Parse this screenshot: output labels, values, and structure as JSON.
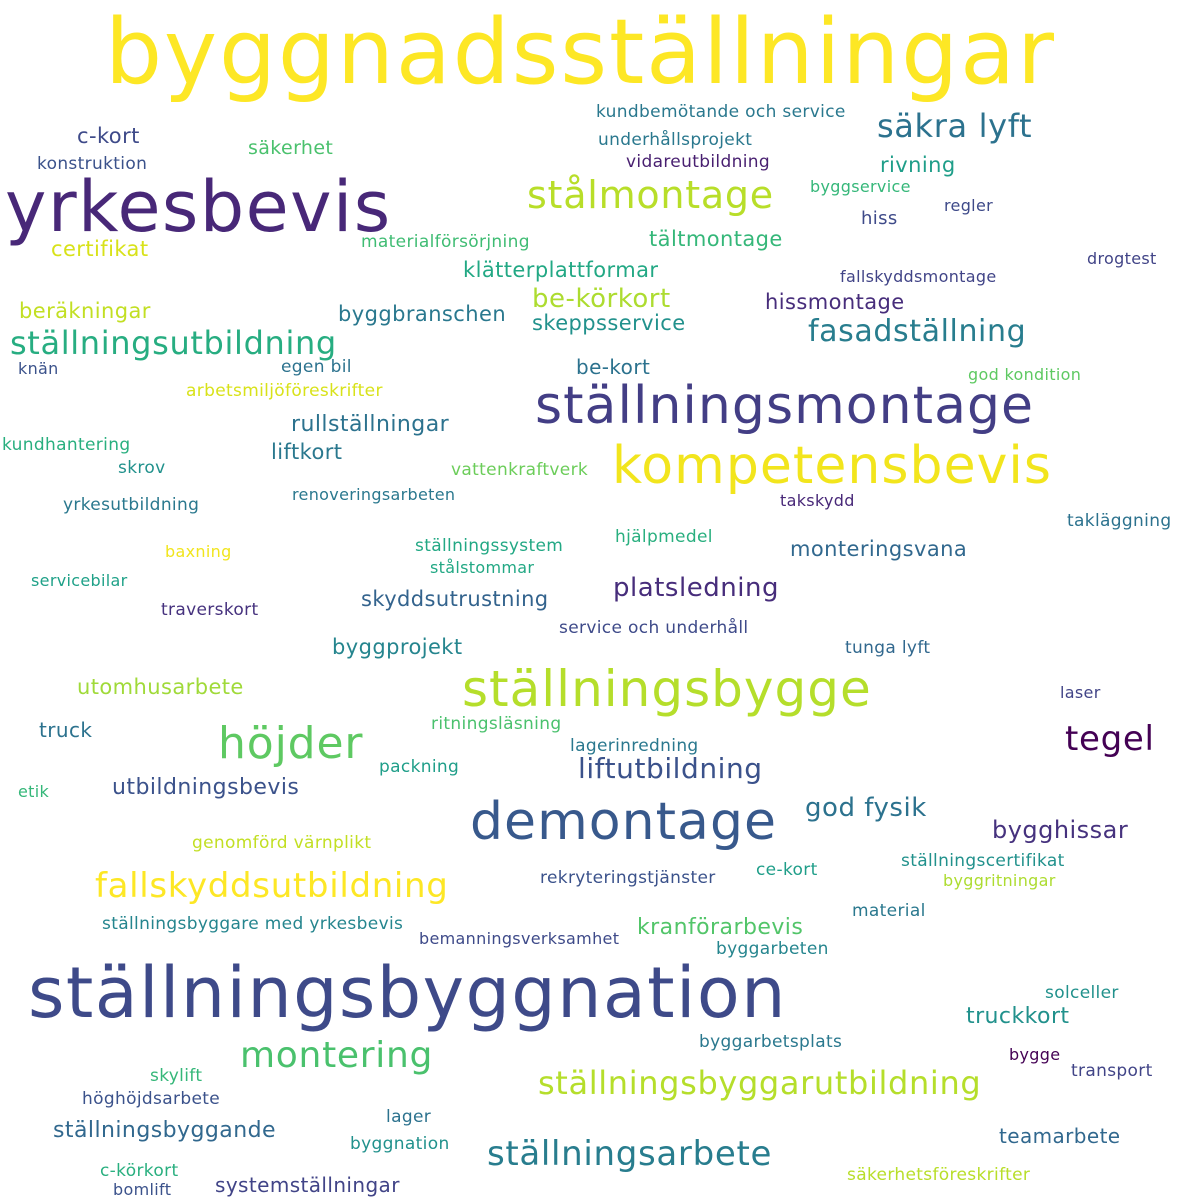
{
  "words": [
    {
      "text": "byggnadsställningar",
      "color": "#fde725"
    },
    {
      "text": "yrkesbevis",
      "color": "#482878"
    },
    {
      "text": "ställningsbyggnation",
      "color": "#3e4a89"
    },
    {
      "text": "ställningsmontage",
      "color": "#433e85"
    },
    {
      "text": "kompetensbevis",
      "color": "#f2e51d"
    },
    {
      "text": "ställningsbygge",
      "color": "#b5de2b"
    },
    {
      "text": "demontage",
      "color": "#38598c"
    },
    {
      "text": "stålmontage",
      "color": "#b8de29"
    },
    {
      "text": "höjder",
      "color": "#5ec962"
    },
    {
      "text": "fallskyddsutbildning",
      "color": "#fde725"
    },
    {
      "text": "montering",
      "color": "#4ac16d"
    },
    {
      "text": "ställningsbyggarutbildning",
      "color": "#b5de2b"
    },
    {
      "text": "ställningsarbete",
      "color": "#287d8e"
    },
    {
      "text": "säkra lyft",
      "color": "#2c728e"
    },
    {
      "text": "tegel",
      "color": "#440154"
    },
    {
      "text": "ställningsutbildning",
      "color": "#27ad81"
    },
    {
      "text": "fasadställning",
      "color": "#287d8e"
    },
    {
      "text": "liftutbildning",
      "color": "#3b528b"
    },
    {
      "text": "platsledning",
      "color": "#472d7b"
    },
    {
      "text": "god fysik",
      "color": "#2c728e"
    },
    {
      "text": "bygghissar",
      "color": "#46327e"
    },
    {
      "text": "be-körkort",
      "color": "#addc30"
    },
    {
      "text": "utbildningsbevis",
      "color": "#3b528b"
    },
    {
      "text": "ställningsbyggande",
      "color": "#31688e"
    },
    {
      "text": "truckkort",
      "color": "#21918c"
    },
    {
      "text": "rullställningar",
      "color": "#2c728e"
    },
    {
      "text": "kranförarbevis",
      "color": "#52c569"
    },
    {
      "text": "skyddsutrustning",
      "color": "#33638d"
    },
    {
      "text": "monteringsvana",
      "color": "#31688e"
    },
    {
      "text": "byggbranschen",
      "color": "#2a788e"
    },
    {
      "text": "hissmontage",
      "color": "#472d7b"
    },
    {
      "text": "skeppsservice",
      "color": "#21918c"
    },
    {
      "text": "klätterplattformar",
      "color": "#22a884"
    },
    {
      "text": "tältmontage",
      "color": "#35b779"
    },
    {
      "text": "beräkningar",
      "color": "#c2df23"
    },
    {
      "text": "certifikat",
      "color": "#d8e219"
    },
    {
      "text": "rivning",
      "color": "#1f9e89"
    },
    {
      "text": "byggprojekt",
      "color": "#25858e"
    },
    {
      "text": "utomhusarbete",
      "color": "#a0da39"
    },
    {
      "text": "systemställningar",
      "color": "#414487"
    },
    {
      "text": "liftkort",
      "color": "#2a788e"
    },
    {
      "text": "c-kort",
      "color": "#3e4a89"
    },
    {
      "text": "säkerhet",
      "color": "#4ac16d"
    },
    {
      "text": "be-kort",
      "color": "#2c728e"
    },
    {
      "text": "teamarbete",
      "color": "#31688e"
    },
    {
      "text": "truck",
      "color": "#2c728e"
    },
    {
      "text": "kundbemötande och service",
      "color": "#2a788e"
    },
    {
      "text": "underhållsprojekt",
      "color": "#2a788e"
    },
    {
      "text": "vidareutbildning",
      "color": "#481f70"
    },
    {
      "text": "konstruktion",
      "color": "#3b528b"
    },
    {
      "text": "byggservice",
      "color": "#35b779"
    },
    {
      "text": "hiss",
      "color": "#3e4a89"
    },
    {
      "text": "regler",
      "color": "#3e4a89"
    },
    {
      "text": "materialförsörjning",
      "color": "#3fbc73"
    },
    {
      "text": "fallskyddsmontage",
      "color": "#414487"
    },
    {
      "text": "drogtest",
      "color": "#414487"
    },
    {
      "text": "knän",
      "color": "#3b528b"
    },
    {
      "text": "arbetsmiljöföreskrifter",
      "color": "#d8e219"
    },
    {
      "text": "god kondition",
      "color": "#5ec962"
    },
    {
      "text": "kundhantering",
      "color": "#29af7f"
    },
    {
      "text": "egen bil",
      "color": "#2c728e"
    },
    {
      "text": "skrov",
      "color": "#21918c"
    },
    {
      "text": "vattenkraftverk",
      "color": "#6ccd5a"
    },
    {
      "text": "renoveringsarbeten",
      "color": "#2a788e"
    },
    {
      "text": "takskydd",
      "color": "#482878"
    },
    {
      "text": "yrkesutbildning",
      "color": "#2a788e"
    },
    {
      "text": "takläggning",
      "color": "#2c728e"
    },
    {
      "text": "hjälpmedel",
      "color": "#29af7f"
    },
    {
      "text": "ställningssystem",
      "color": "#22a884"
    },
    {
      "text": "baxning",
      "color": "#f1e51d"
    },
    {
      "text": "stålstommar",
      "color": "#22a884"
    },
    {
      "text": "servicebilar",
      "color": "#1fa188"
    },
    {
      "text": "traverskort",
      "color": "#46327e"
    },
    {
      "text": "service och underhåll",
      "color": "#3e4a89"
    },
    {
      "text": "tunga lyft",
      "color": "#31688e"
    },
    {
      "text": "laser",
      "color": "#414487"
    },
    {
      "text": "ritningsläsning",
      "color": "#4ac16d"
    },
    {
      "text": "lagerinredning",
      "color": "#2a788e"
    },
    {
      "text": "packning",
      "color": "#1f9e89"
    },
    {
      "text": "etik",
      "color": "#35b779"
    },
    {
      "text": "genomförd värnplikt",
      "color": "#c2df23"
    },
    {
      "text": "ställningscertifikat",
      "color": "#21918c"
    },
    {
      "text": "rekryteringstjänster",
      "color": "#3b528b"
    },
    {
      "text": "ce-kort",
      "color": "#1f9e89"
    },
    {
      "text": "byggritningar",
      "color": "#addc30"
    },
    {
      "text": "material",
      "color": "#2a788e"
    },
    {
      "text": "ställningsbyggare med yrkesbevis",
      "color": "#25858e"
    },
    {
      "text": "bemanningsverksamhet",
      "color": "#3e4a89"
    },
    {
      "text": "byggarbeten",
      "color": "#25858e"
    },
    {
      "text": "solceller",
      "color": "#21918c"
    },
    {
      "text": "byggarbetsplats",
      "color": "#2a788e"
    },
    {
      "text": "bygge",
      "color": "#440154"
    },
    {
      "text": "transport",
      "color": "#414487"
    },
    {
      "text": "skylift",
      "color": "#35b779"
    },
    {
      "text": "höghöjdsarbete",
      "color": "#3b528b"
    },
    {
      "text": "lager",
      "color": "#2c728e"
    },
    {
      "text": "byggnation",
      "color": "#21918c"
    },
    {
      "text": "c-körkort",
      "color": "#29af7f"
    },
    {
      "text": "bomlift",
      "color": "#3b528b"
    },
    {
      "text": "säkerhetsföreskrifter",
      "color": "#b8de29"
    }
  ]
}
